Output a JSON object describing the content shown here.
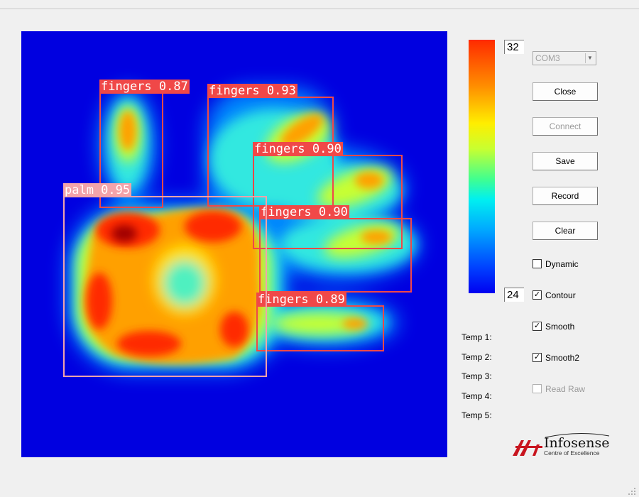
{
  "detections": [
    {
      "label": "fingers 0.87",
      "kind": "fingers"
    },
    {
      "label": "fingers 0.93",
      "kind": "fingers"
    },
    {
      "label": "fingers 0.90",
      "kind": "fingers"
    },
    {
      "label": "fingers 0.90",
      "kind": "fingers"
    },
    {
      "label": "fingers 0.89",
      "kind": "fingers"
    },
    {
      "label": "palm 0.95",
      "kind": "palm"
    }
  ],
  "colorbar": {
    "max": "32",
    "min": "24"
  },
  "port": {
    "selected": "COM3"
  },
  "buttons": {
    "close": "Close",
    "connect": "Connect",
    "save": "Save",
    "record": "Record",
    "clear": "Clear"
  },
  "checkboxes": {
    "dynamic": {
      "label": "Dynamic",
      "checked": false
    },
    "contour": {
      "label": "Contour",
      "checked": true
    },
    "smooth": {
      "label": "Smooth",
      "checked": true
    },
    "smooth2": {
      "label": "Smooth2",
      "checked": true
    },
    "read_raw": {
      "label": "Read Raw",
      "checked": false
    }
  },
  "temps": [
    "Temp 1:",
    "Temp 2:",
    "Temp 3:",
    "Temp 4:",
    "Temp 5:"
  ],
  "logo": {
    "name": "Infosense",
    "tagline": "Centre of Excellence"
  },
  "colors": {
    "box_fingers": "#f04848",
    "box_palm": "#f2a3aa",
    "background": "#0000e0"
  }
}
